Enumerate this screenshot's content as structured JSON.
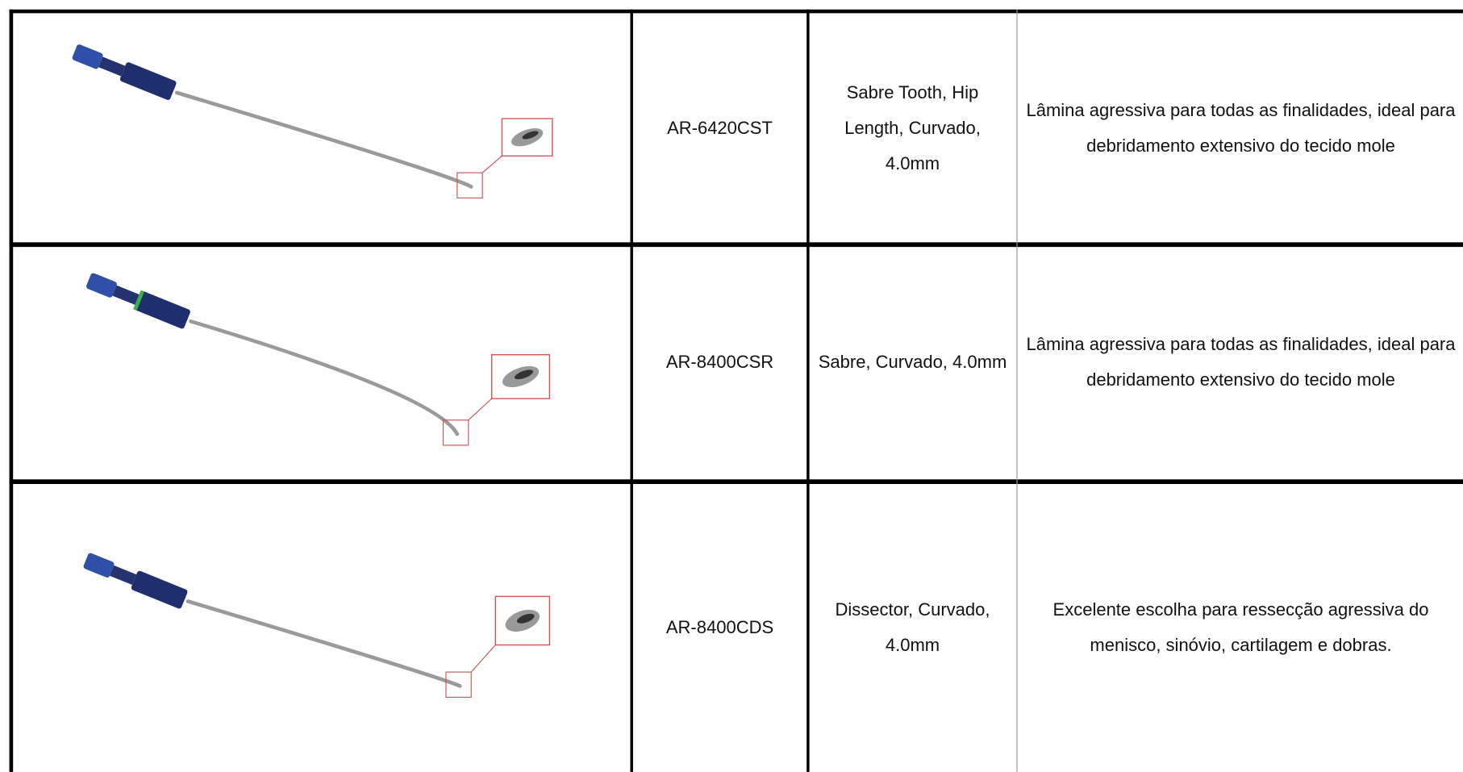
{
  "table": {
    "rows": [
      {
        "code": "AR-6420CST",
        "name": "Sabre Tooth, Hip Length, Curvado, 4.0mm",
        "description": "Lâmina agressiva para todas as finalidades, ideal para debridamento extensivo do tecido mole"
      },
      {
        "code": "AR-8400CSR",
        "name": "Sabre, Curvado, 4.0mm",
        "description": "Lâmina agressiva para todas as finalidades, ideal para debridamento extensivo do tecido mole"
      },
      {
        "code": "AR-8400CDS",
        "name": "Dissector, Curvado, 4.0mm",
        "description": "Excelente escolha para ressecção agressiva do menisco, sinóvio, cartilagem e dobras."
      }
    ]
  }
}
